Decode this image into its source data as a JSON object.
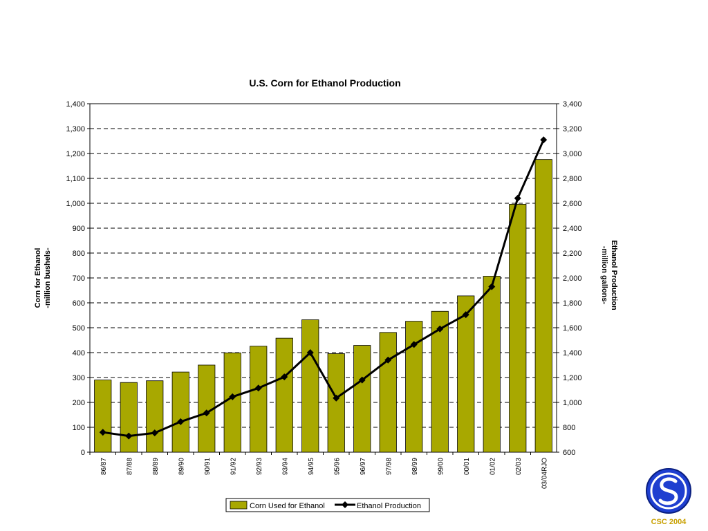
{
  "chart_data": {
    "type": "bar",
    "title": "U.S. Corn for Ethanol Production",
    "categories": [
      "86/87",
      "87/88",
      "88/89",
      "89/90",
      "90/91",
      "91/92",
      "92/93",
      "93/94",
      "94/95",
      "95/96",
      "96/97",
      "97/98",
      "98/99",
      "99/00",
      "00/01",
      "01/02",
      "02/03",
      "03/04RJO"
    ],
    "series": [
      {
        "name": "Corn Used for Ethanol",
        "type": "bar",
        "axis": "left",
        "color": "#a8a800",
        "values": [
          290,
          280,
          287,
          322,
          350,
          399,
          426,
          458,
          532,
          396,
          429,
          481,
          526,
          566,
          628,
          707,
          996,
          1176
        ]
      },
      {
        "name": "Ethanol Production",
        "type": "line",
        "axis": "right",
        "color": "#000000",
        "values": [
          760,
          730,
          755,
          845,
          915,
          1045,
          1115,
          1205,
          1400,
          1035,
          1180,
          1340,
          1465,
          1590,
          1705,
          1930,
          2640,
          3110
        ]
      }
    ],
    "ylabel": "Corn for Ethanol\n-million bushels-",
    "y2label": "Ethanol Production\n-million gallons-",
    "ylim": [
      0,
      1400
    ],
    "y2lim": [
      600,
      3400
    ],
    "yticks": [
      "0",
      "100",
      "200",
      "300",
      "400",
      "500",
      "600",
      "700",
      "800",
      "900",
      "1,000",
      "1,100",
      "1,200",
      "1,300",
      "1,400"
    ],
    "y2ticks": [
      "600",
      "800",
      "1,000",
      "1,200",
      "1,400",
      "1,600",
      "1,800",
      "2,000",
      "2,200",
      "2,400",
      "2,600",
      "2,800",
      "3,000",
      "3,200",
      "3,400"
    ],
    "grid": "horizontal dashed",
    "legend_position": "bottom-center"
  },
  "logo": {
    "caption": "CSC 2004",
    "color": "#0033cc"
  }
}
